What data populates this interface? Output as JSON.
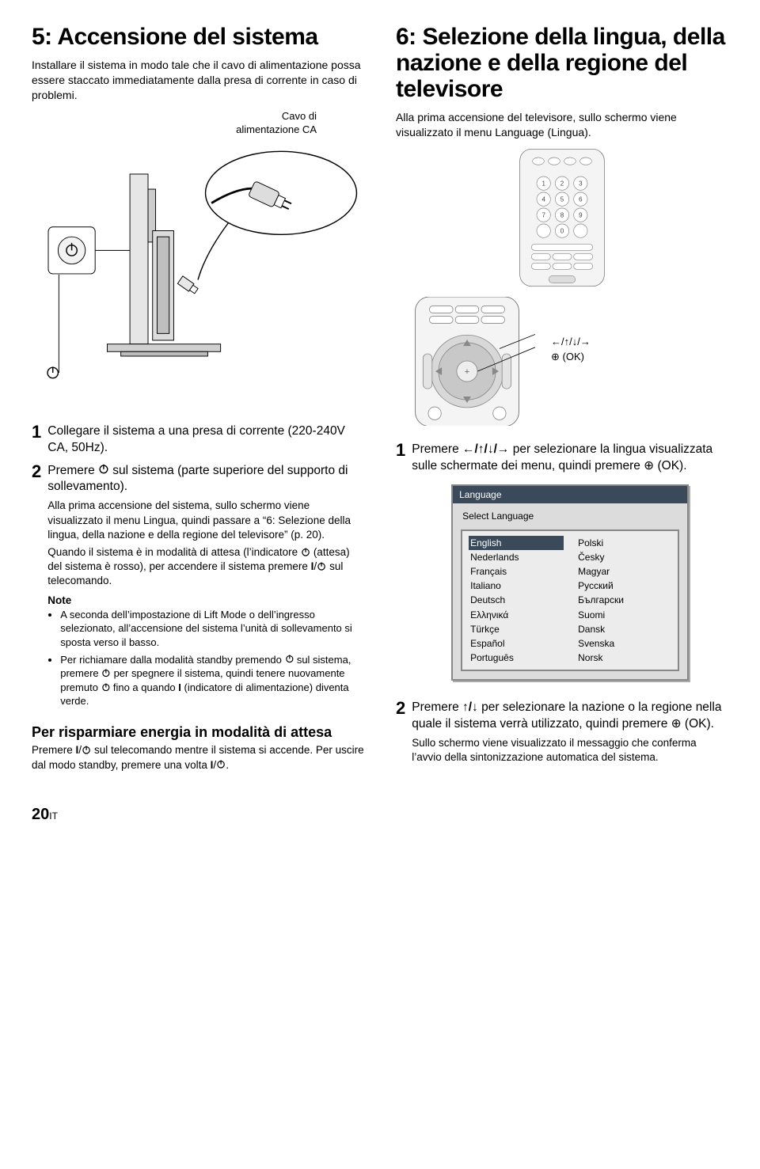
{
  "left": {
    "title": "5: Accensione del sistema",
    "intro": "Installare il sistema in modo tale che il cavo di alimentazione possa essere staccato immediatamente dalla presa di corrente in caso di problemi.",
    "cable_caption": "Cavo di\nalimentazione CA",
    "step1": "Collegare il sistema a una presa di corrente (220-240V CA, 50Hz).",
    "step2_main_a": "Premere ",
    "step2_main_b": " sul sistema (parte superiore del supporto di sollevamento).",
    "step2_detail": "Alla prima accensione del sistema, sullo schermo viene visualizzato il menu Lingua, quindi passare a “6: Selezione della lingua, della nazione e della regione del televisore” (p. 20).",
    "step2_detail2_a": "Quando il sistema è in modalità di attesa (l’indicatore ",
    "step2_detail2_b": " (attesa) del sistema è rosso), per accendere il sistema premere ",
    "step2_detail2_c": " sul telecomando.",
    "note_head": "Note",
    "note1": "A seconda dell’impostazione di Lift Mode o dell’ingresso selezionato, all’accensione del sistema l’unità di sollevamento si sposta verso il basso.",
    "note2_a": "Per richiamare dalla modalità standby premendo ",
    "note2_b": " sul sistema, premere ",
    "note2_c": " per spegnere il sistema, quindi tenere nuovamente premuto ",
    "note2_d": " fino a quando ",
    "note2_e": " (indicatore di alimentazione) diventa verde.",
    "sub_heading": "Per risparmiare energia in modalità di attesa",
    "sub_body_a": "Premere ",
    "sub_body_b": " sul telecomando mentre il sistema si accende. Per uscire dal modo standby, premere una volta ",
    "sub_body_c": "."
  },
  "right": {
    "title": "6: Selezione della lingua, della nazione e della regione del televisore",
    "intro": "Alla prima accensione del televisore, sullo schermo viene visualizzato il menu Language (Lingua).",
    "arrows_label": "←/↑/↓/→",
    "ok_label": "⊕ (OK)",
    "step1_a": "Premere ",
    "step1_arrows": "←/↑/↓/→",
    "step1_b": " per selezionare la lingua visualizzata sulle schermate dei menu, quindi premere ⊕ (OK).",
    "dialog": {
      "title": "Language",
      "subtitle": "Select Language",
      "col1": [
        "English",
        "Nederlands",
        "Français",
        "Italiano",
        "Deutsch",
        "Ελληνικά",
        "Türkçe",
        "Español",
        "Português"
      ],
      "col2": [
        "Polski",
        "Česky",
        "Magyar",
        "Русский",
        "Български",
        "Suomi",
        "Dansk",
        "Svenska",
        "Norsk"
      ],
      "selected": "English"
    },
    "step2_a": "Premere ",
    "step2_arrows": "↑/↓",
    "step2_b": " per selezionare la nazione o la regione nella quale il sistema verrà utilizzato, quindi premere ⊕ (OK).",
    "step2_detail": "Sullo schermo viene visualizzato il messaggio che conferma l’avvio della sintonizzazione automatica del sistema."
  },
  "page": {
    "num": "20",
    "suffix": "IT"
  }
}
